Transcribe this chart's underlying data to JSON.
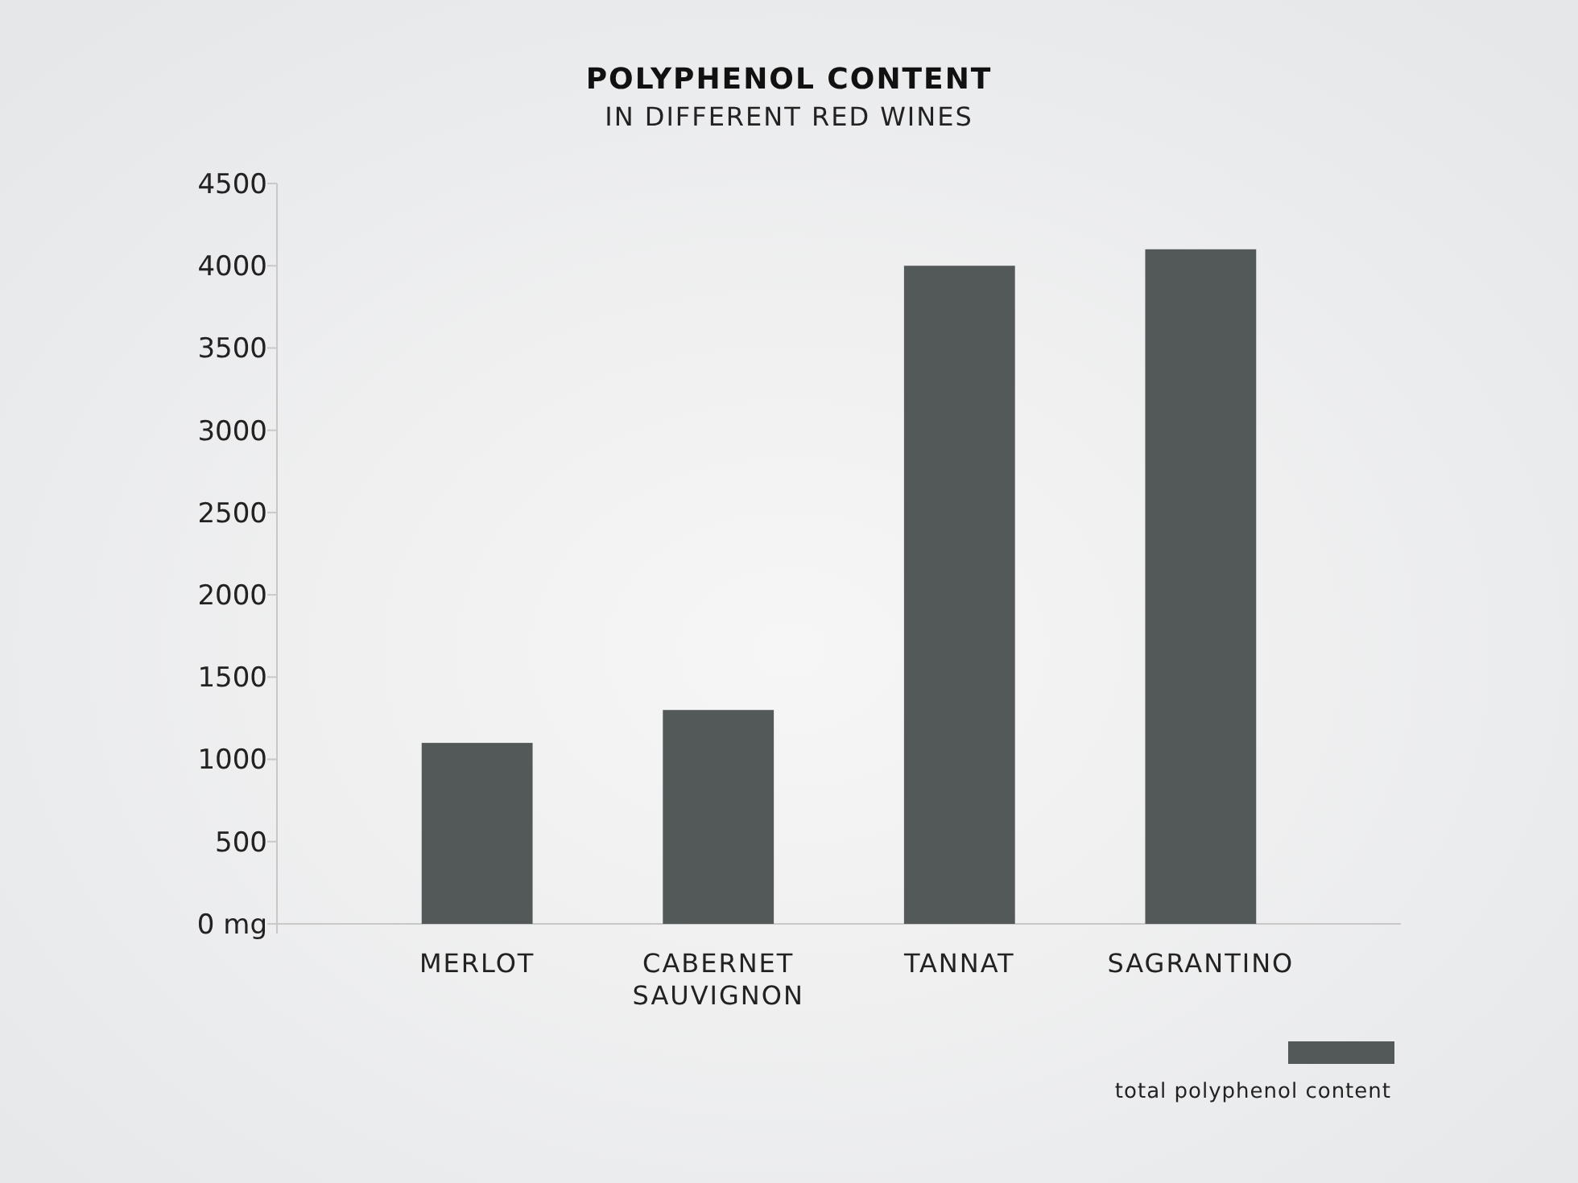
{
  "chart_data": {
    "type": "bar",
    "title": "POLYPHENOL CONTENT",
    "subtitle": "IN DIFFERENT RED WINES",
    "categories": [
      "MERLOT",
      "CABERNET SAUVIGNON",
      "TANNAT",
      "SAGRANTINO"
    ],
    "series": [
      {
        "name": "total polyphenol content",
        "color": "#535958",
        "values": [
          1100,
          1300,
          4000,
          4100
        ]
      }
    ],
    "ylim": [
      0,
      4500
    ],
    "yticks": [
      {
        "value": 0,
        "label": "0 mg"
      },
      500,
      1000,
      1500,
      2000,
      2500,
      3000,
      3500,
      4000,
      4500
    ],
    "grid": false,
    "legend": "bottom right"
  }
}
